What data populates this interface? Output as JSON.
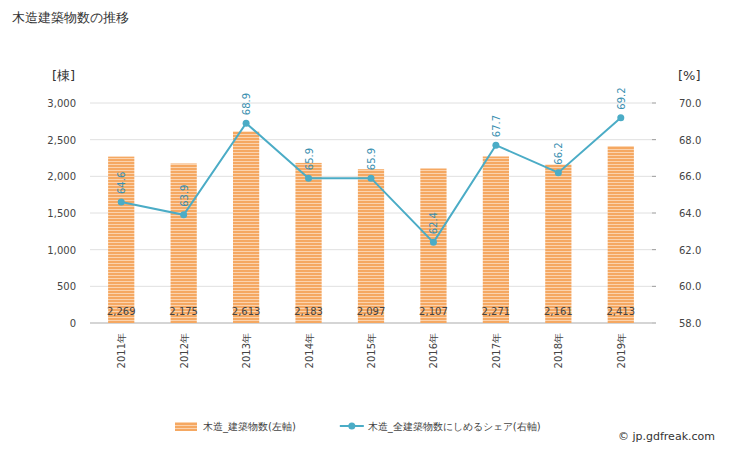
{
  "chart_data": {
    "type": "bar",
    "title": "木造建築物数の推移",
    "ylabel": "[棟]",
    "y2label": "[%]",
    "source": "© jp.gdfreak.com",
    "categories": [
      "2011年",
      "2012年",
      "2013年",
      "2014年",
      "2015年",
      "2016年",
      "2017年",
      "2018年",
      "2019年"
    ],
    "series": [
      {
        "name": "木造_建築物数(左軸)",
        "type": "bar",
        "color": "#f5a862",
        "values": [
          2269,
          2175,
          2613,
          2183,
          2097,
          2107,
          2271,
          2161,
          2413
        ],
        "value_labels": [
          "2,269",
          "2,175",
          "2,613",
          "2,183",
          "2,097",
          "2,107",
          "2,271",
          "2,161",
          "2,413"
        ]
      },
      {
        "name": "木造_全建築物数にしめるシェア(右軸)",
        "type": "line",
        "axis": "y2",
        "color": "#4bacc6",
        "marker": "circle",
        "line_style": "solid",
        "values": [
          64.6,
          63.9,
          68.9,
          65.9,
          65.9,
          62.4,
          67.7,
          66.2,
          69.2
        ]
      }
    ],
    "ylim": [
      0,
      3000
    ],
    "yticks": [
      0,
      500,
      {
        "value": 1000,
        "label": "1,000"
      },
      {
        "value": 1500,
        "label": "1,500"
      },
      {
        "value": 2000,
        "label": "2,000"
      },
      {
        "value": 2500,
        "label": "2,500"
      },
      {
        "value": 3000,
        "label": "3,000"
      }
    ],
    "y2lim": [
      58,
      70
    ],
    "y2ticks": [
      {
        "value": 58,
        "label": "58.0"
      },
      {
        "value": 60,
        "label": "60.0"
      },
      {
        "value": 62,
        "label": "62.0"
      },
      {
        "value": 64,
        "label": "64.0"
      },
      {
        "value": 66,
        "label": "66.0"
      },
      {
        "value": 68,
        "label": "68.0"
      },
      {
        "value": 70,
        "label": "70.0"
      }
    ],
    "grid": true,
    "data_labels": true,
    "legend": "bottom"
  }
}
